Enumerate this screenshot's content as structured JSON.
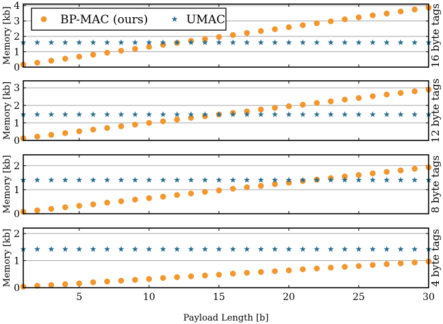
{
  "chart_data": {
    "type": "scatter",
    "xlabel": "Payload Length [b]",
    "x_range": [
      1,
      30
    ],
    "x_ticks": [
      5,
      10,
      15,
      20,
      25,
      30
    ],
    "x": [
      1,
      2,
      3,
      4,
      5,
      6,
      7,
      8,
      9,
      10,
      11,
      12,
      13,
      14,
      15,
      16,
      17,
      18,
      19,
      20,
      21,
      22,
      23,
      24,
      25,
      26,
      27,
      28,
      29,
      30
    ],
    "legend": {
      "placement": "top-left",
      "entries": [
        "BP-MAC (ours)",
        "UMAC"
      ]
    },
    "colors": {
      "bp_mac": "#F2972E",
      "umac": "#2A6F8E",
      "grid": "#a8a8a8"
    },
    "panels": [
      {
        "side_label": "16 byte tags",
        "ylabel": "Memory [kb]",
        "ylim": [
          0,
          4.1
        ],
        "yticks": [
          0,
          1,
          2,
          3,
          4
        ],
        "series": [
          {
            "name": "BP-MAC (ours)",
            "marker": "circle",
            "values": [
              0.17,
              0.29,
              0.42,
              0.55,
              0.68,
              0.81,
              0.94,
              1.07,
              1.19,
              1.32,
              1.45,
              1.58,
              1.71,
              1.83,
              1.96,
              2.09,
              2.22,
              2.35,
              2.47,
              2.6,
              2.73,
              2.86,
              2.98,
              3.11,
              3.24,
              3.37,
              3.49,
              3.62,
              3.75,
              3.87
            ]
          },
          {
            "name": "UMAC",
            "marker": "star",
            "values": [
              1.6,
              1.6,
              1.6,
              1.6,
              1.6,
              1.6,
              1.6,
              1.6,
              1.6,
              1.6,
              1.6,
              1.6,
              1.6,
              1.6,
              1.6,
              1.6,
              1.6,
              1.6,
              1.6,
              1.6,
              1.6,
              1.6,
              1.6,
              1.6,
              1.6,
              1.6,
              1.6,
              1.6,
              1.6,
              1.6
            ]
          }
        ]
      },
      {
        "side_label": "12 byte tags",
        "ylabel": "Memory [kb]",
        "ylim": [
          0,
          3.4
        ],
        "yticks": [
          0,
          1,
          2,
          3
        ],
        "series": [
          {
            "name": "BP-MAC (ours)",
            "marker": "circle",
            "values": [
              0.12,
              0.22,
              0.32,
              0.42,
              0.52,
              0.62,
              0.71,
              0.81,
              0.9,
              1.0,
              1.09,
              1.19,
              1.29,
              1.38,
              1.48,
              1.57,
              1.66,
              1.76,
              1.86,
              1.95,
              2.04,
              2.14,
              2.23,
              2.33,
              2.42,
              2.52,
              2.62,
              2.71,
              2.8,
              2.9
            ]
          },
          {
            "name": "UMAC",
            "marker": "star",
            "values": [
              1.48,
              1.48,
              1.48,
              1.48,
              1.48,
              1.48,
              1.48,
              1.48,
              1.48,
              1.48,
              1.48,
              1.48,
              1.48,
              1.48,
              1.48,
              1.48,
              1.48,
              1.48,
              1.48,
              1.48,
              1.48,
              1.48,
              1.48,
              1.48,
              1.48,
              1.48,
              1.48,
              1.48,
              1.48,
              1.48
            ]
          }
        ]
      },
      {
        "side_label": "8 byte tags",
        "ylabel": "Memory [kb]",
        "ylim": [
          0,
          2.45
        ],
        "yticks": [
          0,
          1,
          2
        ],
        "series": [
          {
            "name": "BP-MAC (ours)",
            "marker": "circle",
            "values": [
              0.08,
              0.14,
              0.2,
              0.27,
              0.33,
              0.39,
              0.46,
              0.52,
              0.59,
              0.65,
              0.71,
              0.78,
              0.84,
              0.91,
              0.97,
              1.04,
              1.1,
              1.16,
              1.23,
              1.29,
              1.36,
              1.42,
              1.48,
              1.55,
              1.61,
              1.68,
              1.74,
              1.8,
              1.87,
              1.93
            ]
          },
          {
            "name": "UMAC",
            "marker": "star",
            "values": [
              1.4,
              1.4,
              1.4,
              1.4,
              1.4,
              1.4,
              1.4,
              1.4,
              1.4,
              1.4,
              1.4,
              1.4,
              1.4,
              1.4,
              1.4,
              1.4,
              1.4,
              1.4,
              1.4,
              1.4,
              1.4,
              1.4,
              1.4,
              1.4,
              1.4,
              1.4,
              1.4,
              1.4,
              1.4,
              1.4
            ]
          }
        ]
      },
      {
        "side_label": "4 byte tags",
        "ylabel": "Memory [kb]",
        "ylim": [
          0,
          2.2
        ],
        "yticks": [
          0,
          1,
          2
        ],
        "series": [
          {
            "name": "BP-MAC (ours)",
            "marker": "circle",
            "values": [
              0.04,
              0.07,
              0.1,
              0.13,
              0.16,
              0.2,
              0.23,
              0.26,
              0.29,
              0.32,
              0.36,
              0.39,
              0.42,
              0.45,
              0.48,
              0.52,
              0.55,
              0.58,
              0.61,
              0.64,
              0.68,
              0.71,
              0.74,
              0.77,
              0.8,
              0.84,
              0.87,
              0.9,
              0.93,
              0.97
            ]
          },
          {
            "name": "UMAC",
            "marker": "star",
            "values": [
              1.42,
              1.42,
              1.42,
              1.42,
              1.42,
              1.42,
              1.42,
              1.42,
              1.42,
              1.42,
              1.42,
              1.42,
              1.42,
              1.42,
              1.42,
              1.42,
              1.42,
              1.42,
              1.42,
              1.42,
              1.42,
              1.42,
              1.42,
              1.42,
              1.42,
              1.42,
              1.42,
              1.42,
              1.42,
              1.42
            ]
          }
        ]
      }
    ]
  }
}
